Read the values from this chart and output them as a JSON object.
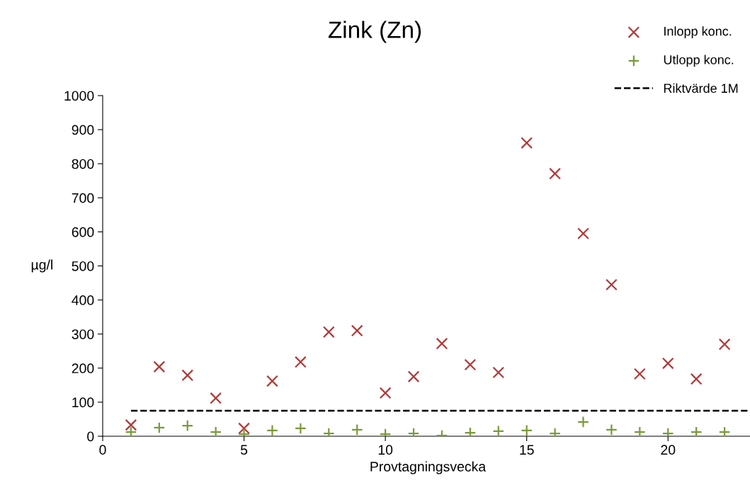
{
  "chart_data": {
    "type": "scatter",
    "title": "Zink (Zn)",
    "xlabel": "Provtagningsvecka",
    "ylabel": "µg/l",
    "x": [
      1,
      2,
      3,
      4,
      5,
      6,
      7,
      8,
      9,
      10,
      11,
      12,
      13,
      14,
      15,
      16,
      17,
      18,
      19,
      20,
      21,
      22
    ],
    "series": [
      {
        "name": "Inlopp konc.",
        "color": "#b03a3a",
        "marker": "cross",
        "values": [
          33,
          204,
          179,
          112,
          23,
          162,
          218,
          306,
          310,
          127,
          175,
          272,
          210,
          187,
          861,
          771,
          595,
          445,
          183,
          214,
          168,
          270
        ]
      },
      {
        "name": "Utlopp konc.",
        "color": "#7a9a3a",
        "marker": "plus",
        "values": [
          12,
          25,
          31,
          12,
          6,
          17,
          23,
          8,
          19,
          6,
          8,
          2,
          10,
          15,
          17,
          8,
          42,
          19,
          12,
          8,
          12,
          12
        ]
      },
      {
        "name": "Riktvärde 1M",
        "type": "line",
        "color": "#000000",
        "line_style": "dashed",
        "marker": "none",
        "x": [
          1,
          23
        ],
        "values": [
          75,
          75
        ]
      }
    ],
    "xlim": [
      0,
      23
    ],
    "xticks": [
      0,
      5,
      10,
      15,
      20
    ],
    "ylim": [
      0,
      1000
    ],
    "yticks": [
      0,
      100,
      200,
      300,
      400,
      500,
      600,
      700,
      800,
      900,
      1000
    ],
    "grid": false,
    "legend": "top right"
  }
}
